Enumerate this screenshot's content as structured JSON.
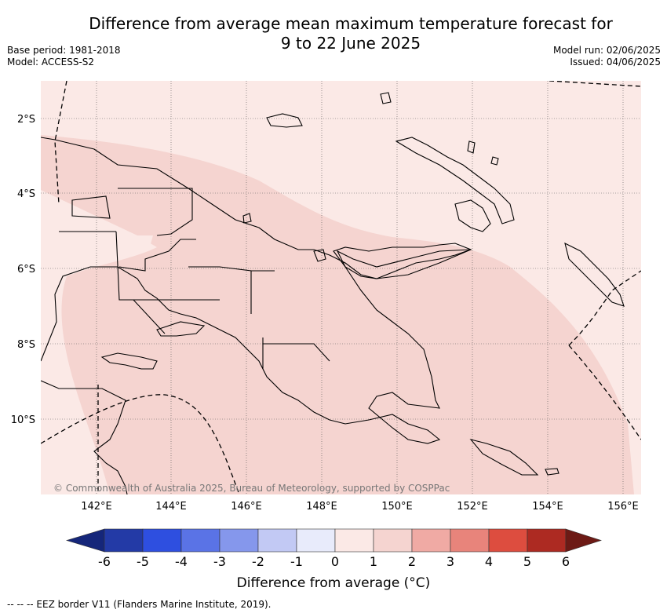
{
  "header": {
    "title_line1": "Difference from average mean maximum temperature forecast for",
    "title_line2": "9 to 22 June 2025",
    "base_period": "Base period: 1981-2018",
    "model": "Model: ACCESS-S2",
    "model_run": "Model run: 02/06/2025",
    "issued": "Issued: 04/06/2025"
  },
  "map": {
    "lon_ticks": [
      "142°E",
      "144°E",
      "146°E",
      "148°E",
      "150°E",
      "152°E",
      "154°E",
      "156°E"
    ],
    "lat_ticks": [
      "2°S",
      "4°S",
      "6°S",
      "8°S",
      "10°S"
    ],
    "copyright": "© Commonwealth of Australia 2025, Bureau of Meteorology, supported by COSPPac",
    "colors": {
      "anomaly_0_1": "#fbe9e6",
      "anomaly_1_2": "#f5d4d0",
      "land_outline": "#000000"
    }
  },
  "colorbar": {
    "tick_labels": [
      "-6",
      "-5",
      "-4",
      "-3",
      "-2",
      "-1",
      "0",
      "1",
      "2",
      "3",
      "4",
      "5",
      "6"
    ],
    "colors": [
      "#233aa6",
      "#2e4fe0",
      "#5a73e6",
      "#8597ec",
      "#c2c9f4",
      "#e8ebfb",
      "#fbe9e6",
      "#f5d4d0",
      "#f0aaa4",
      "#e8847b",
      "#dd4d3f",
      "#ad2a22"
    ],
    "low_extend_color": "#15267a",
    "high_extend_color": "#6d1a15",
    "label": "Difference from average (°C)"
  },
  "footer": {
    "legend": "--  --  -- EEZ border V11 (Flanders Marine Institute, 2019)."
  }
}
